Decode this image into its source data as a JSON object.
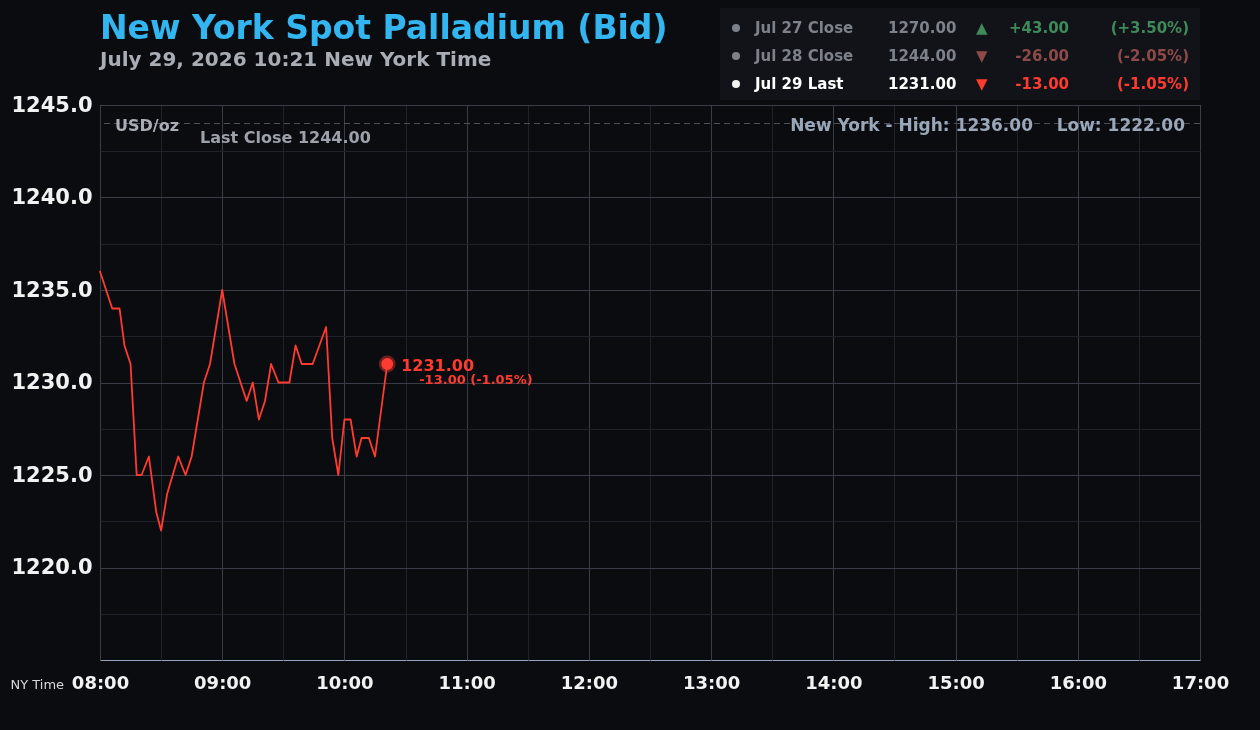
{
  "chart_data": {
    "type": "line",
    "title": "New York Spot Palladium (Bid)",
    "subtitle": "July 29, 2026 10:21 New York Time",
    "xlabel": "NY Time",
    "ylabel": "USD/oz",
    "series": [
      {
        "color": "#ff3b30",
        "x": [
          8,
          8.1,
          8.16,
          8.2,
          8.25,
          8.3,
          8.34,
          8.4,
          8.46,
          8.5,
          8.55,
          8.64,
          8.7,
          8.75,
          8.8,
          8.85,
          8.9,
          9,
          9.1,
          9.2,
          9.25,
          9.3,
          9.35,
          9.4,
          9.46,
          9.55,
          9.6,
          9.65,
          9.74,
          9.85,
          9.9,
          9.95,
          10,
          10.05,
          10.1,
          10.14,
          10.2,
          10.25,
          10.35
        ],
        "values": [
          1236,
          1234,
          1234,
          1232,
          1231,
          1225,
          1225,
          1226,
          1223,
          1222,
          1224,
          1226,
          1225,
          1226,
          1228,
          1230,
          1231,
          1235,
          1231,
          1229,
          1230,
          1228,
          1229,
          1231,
          1230,
          1230,
          1232,
          1231,
          1231,
          1233,
          1227,
          1225,
          1228,
          1228,
          1226,
          1227,
          1227,
          1226,
          1231
        ]
      },
      {
        "type": "scatter",
        "color": "#ff3b30",
        "x": [
          10.35
        ],
        "values": [
          1231
        ]
      }
    ],
    "xlim": [
      8,
      17
    ],
    "xticks": [
      {
        "value": 8,
        "label": "08:00"
      },
      {
        "value": 8.5,
        "label": null
      },
      {
        "value": 9,
        "label": "09:00"
      },
      {
        "value": 9.5,
        "label": null
      },
      {
        "value": 10,
        "label": "10:00"
      },
      {
        "value": 10.5,
        "label": null
      },
      {
        "value": 11,
        "label": "11:00"
      },
      {
        "value": 11.5,
        "label": null
      },
      {
        "value": 12,
        "label": "12:00"
      },
      {
        "value": 12.5,
        "label": null
      },
      {
        "value": 13,
        "label": "13:00"
      },
      {
        "value": 13.5,
        "label": null
      },
      {
        "value": 14,
        "label": "14:00"
      },
      {
        "value": 14.5,
        "label": null
      },
      {
        "value": 15,
        "label": "15:00"
      },
      {
        "value": 15.5,
        "label": null
      },
      {
        "value": 16,
        "label": "16:00"
      },
      {
        "value": 16.5,
        "label": null
      },
      {
        "value": 17,
        "label": "17:00"
      }
    ],
    "ylim": [
      1215,
      1245
    ],
    "yticks": [
      {
        "value": 1217.5,
        "label": null
      },
      {
        "value": 1220,
        "label": "1220.0"
      },
      {
        "value": 1222.5,
        "label": null
      },
      {
        "value": 1225,
        "label": "1225.0"
      },
      {
        "value": 1227.5,
        "label": null
      },
      {
        "value": 1230,
        "label": "1230.0"
      },
      {
        "value": 1232.5,
        "label": null
      },
      {
        "value": 1235,
        "label": "1235.0"
      },
      {
        "value": 1237.5,
        "label": null
      },
      {
        "value": 1240,
        "label": "1240.0"
      },
      {
        "value": 1242.5,
        "label": null
      },
      {
        "value": 1245,
        "label": "1245.0"
      }
    ],
    "grid": true,
    "ref_lines": [
      {
        "axis": "y",
        "value": 1244,
        "label": "Last Close 1244.00",
        "line_style": "dashed",
        "color": "#4b505b"
      }
    ],
    "annotations": [
      "Jul 27 Close",
      "1270.00",
      "▲",
      "+43.00",
      "(+3.50%)",
      "Jul 28 Close",
      "1244.00",
      "▼",
      "-26.00",
      "(-2.05%)",
      "Jul 29 Last",
      "1231.00",
      "▼",
      "-13.00",
      "(-1.05%)",
      "New York - High: 1236.00",
      "Low: 1222.00",
      {
        "text": "1231.00",
        "x": 10.35,
        "y": 1231
      },
      {
        "text": "-13.00 (-1.05%)",
        "x": 10.35,
        "y": 1231
      }
    ]
  }
}
